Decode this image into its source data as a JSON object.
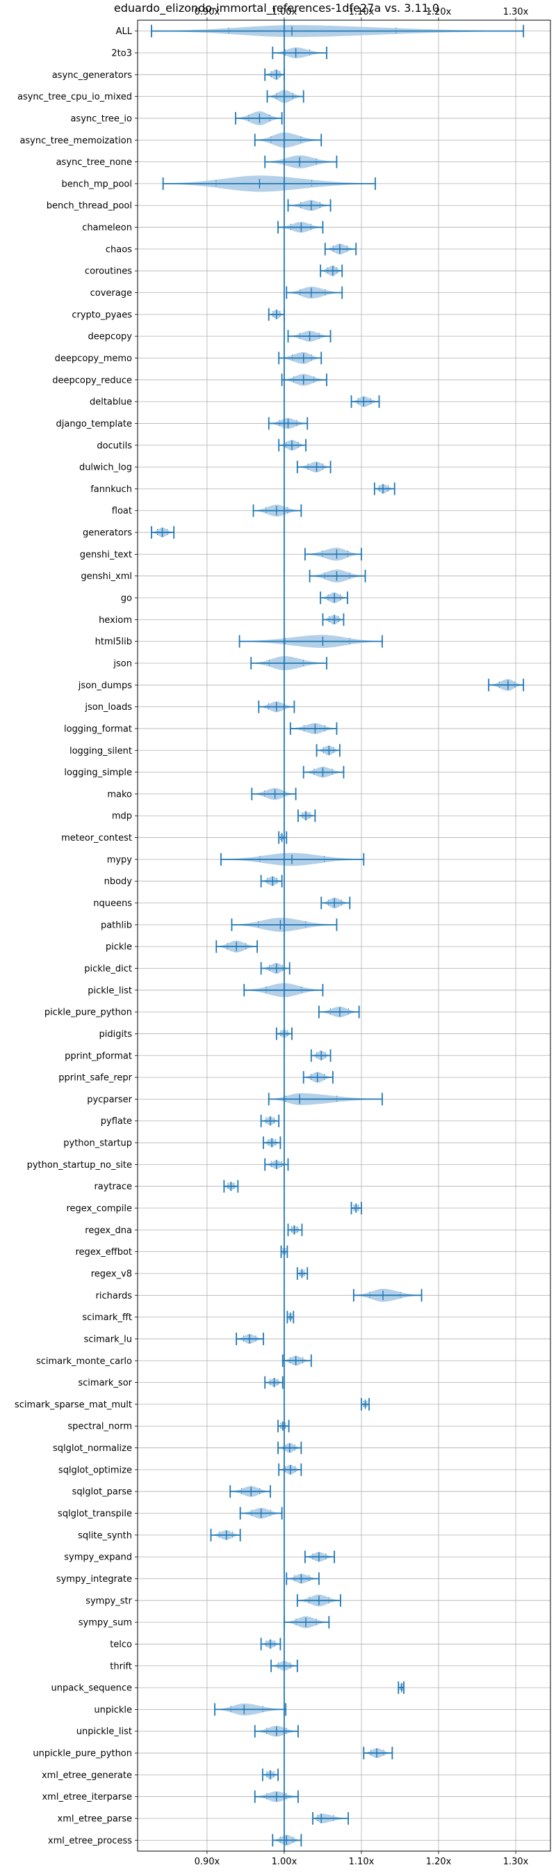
{
  "chart_data": {
    "type": "violin",
    "title": "eduardo_elizondo-immortal_references-1dfe27a vs. 3.11.0",
    "x_ticks": [
      "0.90x",
      "1.00x",
      "1.10x",
      "1.20x",
      "1.30x"
    ],
    "x_tick_values": [
      0.9,
      1.0,
      1.1,
      1.2,
      1.3
    ],
    "xlim": [
      0.81,
      1.345
    ],
    "reference_line": 1.0,
    "grid": true,
    "color": "#1f77b4",
    "fill_color": "#a6c8e4",
    "orientation": "horizontal",
    "categories": [
      "ALL",
      "2to3",
      "async_generators",
      "async_tree_cpu_io_mixed",
      "async_tree_io",
      "async_tree_memoization",
      "async_tree_none",
      "bench_mp_pool",
      "bench_thread_pool",
      "chameleon",
      "chaos",
      "coroutines",
      "coverage",
      "crypto_pyaes",
      "deepcopy",
      "deepcopy_memo",
      "deepcopy_reduce",
      "deltablue",
      "django_template",
      "docutils",
      "dulwich_log",
      "fannkuch",
      "float",
      "generators",
      "genshi_text",
      "genshi_xml",
      "go",
      "hexiom",
      "html5lib",
      "json",
      "json_dumps",
      "json_loads",
      "logging_format",
      "logging_silent",
      "logging_simple",
      "mako",
      "mdp",
      "meteor_contest",
      "mypy",
      "nbody",
      "nqueens",
      "pathlib",
      "pickle",
      "pickle_dict",
      "pickle_list",
      "pickle_pure_python",
      "pidigits",
      "pprint_pformat",
      "pprint_safe_repr",
      "pycparser",
      "pyflate",
      "python_startup",
      "python_startup_no_site",
      "raytrace",
      "regex_compile",
      "regex_dna",
      "regex_effbot",
      "regex_v8",
      "richards",
      "scimark_fft",
      "scimark_lu",
      "scimark_monte_carlo",
      "scimark_sor",
      "scimark_sparse_mat_mult",
      "spectral_norm",
      "sqlglot_normalize",
      "sqlglot_optimize",
      "sqlglot_parse",
      "sqlglot_transpile",
      "sqlite_synth",
      "sympy_expand",
      "sympy_integrate",
      "sympy_str",
      "sympy_sum",
      "telco",
      "thrift",
      "unpack_sequence",
      "unpickle",
      "unpickle_list",
      "unpickle_pure_python",
      "xml_etree_generate",
      "xml_etree_iterparse",
      "xml_etree_parse",
      "xml_etree_process"
    ],
    "series": [
      {
        "min": 0.828,
        "max": 1.31,
        "median": 1.01,
        "width": 0.55
      },
      {
        "min": 0.985,
        "max": 1.055,
        "median": 1.015,
        "width": 0.5
      },
      {
        "min": 0.975,
        "max": 1.0,
        "median": 0.99,
        "width": 0.5
      },
      {
        "min": 0.978,
        "max": 1.025,
        "median": 1.0,
        "width": 0.6
      },
      {
        "min": 0.937,
        "max": 0.997,
        "median": 0.968,
        "width": 0.65
      },
      {
        "min": 0.962,
        "max": 1.048,
        "median": 1.0,
        "width": 0.7
      },
      {
        "min": 0.975,
        "max": 1.068,
        "median": 1.02,
        "width": 0.6
      },
      {
        "min": 0.843,
        "max": 1.118,
        "median": 0.968,
        "width": 0.75
      },
      {
        "min": 1.005,
        "max": 1.06,
        "median": 1.035,
        "width": 0.5
      },
      {
        "min": 0.992,
        "max": 1.05,
        "median": 1.022,
        "width": 0.5
      },
      {
        "min": 1.053,
        "max": 1.093,
        "median": 1.072,
        "width": 0.5
      },
      {
        "min": 1.047,
        "max": 1.075,
        "median": 1.063,
        "width": 0.5
      },
      {
        "min": 1.003,
        "max": 1.075,
        "median": 1.035,
        "width": 0.55
      },
      {
        "min": 0.98,
        "max": 1.0,
        "median": 0.99,
        "width": 0.45
      },
      {
        "min": 1.005,
        "max": 1.06,
        "median": 1.033,
        "width": 0.5
      },
      {
        "min": 0.993,
        "max": 1.048,
        "median": 1.025,
        "width": 0.55
      },
      {
        "min": 0.997,
        "max": 1.055,
        "median": 1.025,
        "width": 0.55
      },
      {
        "min": 1.087,
        "max": 1.123,
        "median": 1.103,
        "width": 0.5
      },
      {
        "min": 0.98,
        "max": 1.03,
        "median": 1.005,
        "width": 0.5
      },
      {
        "min": 0.993,
        "max": 1.028,
        "median": 1.01,
        "width": 0.5
      },
      {
        "min": 1.017,
        "max": 1.06,
        "median": 1.042,
        "width": 0.5
      },
      {
        "min": 1.117,
        "max": 1.143,
        "median": 1.128,
        "width": 0.45
      },
      {
        "min": 0.96,
        "max": 1.022,
        "median": 0.99,
        "width": 0.55
      },
      {
        "min": 0.828,
        "max": 0.857,
        "median": 0.842,
        "width": 0.45
      },
      {
        "min": 1.027,
        "max": 1.1,
        "median": 1.068,
        "width": 0.6
      },
      {
        "min": 1.033,
        "max": 1.105,
        "median": 1.068,
        "width": 0.6
      },
      {
        "min": 1.047,
        "max": 1.082,
        "median": 1.065,
        "width": 0.5
      },
      {
        "min": 1.05,
        "max": 1.077,
        "median": 1.065,
        "width": 0.45
      },
      {
        "min": 0.942,
        "max": 1.127,
        "median": 1.05,
        "width": 0.6
      },
      {
        "min": 0.957,
        "max": 1.055,
        "median": 1.0,
        "width": 0.65
      },
      {
        "min": 1.265,
        "max": 1.31,
        "median": 1.29,
        "width": 0.55
      },
      {
        "min": 0.967,
        "max": 1.013,
        "median": 0.99,
        "width": 0.5
      },
      {
        "min": 1.008,
        "max": 1.068,
        "median": 1.04,
        "width": 0.5
      },
      {
        "min": 1.042,
        "max": 1.072,
        "median": 1.058,
        "width": 0.45
      },
      {
        "min": 1.025,
        "max": 1.077,
        "median": 1.05,
        "width": 0.5
      },
      {
        "min": 0.958,
        "max": 1.015,
        "median": 0.988,
        "width": 0.55
      },
      {
        "min": 1.018,
        "max": 1.04,
        "median": 1.028,
        "width": 0.4
      },
      {
        "min": 0.993,
        "max": 1.003,
        "median": 0.997,
        "width": 0.3
      },
      {
        "min": 0.918,
        "max": 1.103,
        "median": 1.01,
        "width": 0.6
      },
      {
        "min": 0.97,
        "max": 0.997,
        "median": 0.985,
        "width": 0.45
      },
      {
        "min": 1.048,
        "max": 1.085,
        "median": 1.065,
        "width": 0.5
      },
      {
        "min": 0.932,
        "max": 1.068,
        "median": 0.995,
        "width": 0.65
      },
      {
        "min": 0.912,
        "max": 0.965,
        "median": 0.938,
        "width": 0.55
      },
      {
        "min": 0.97,
        "max": 1.007,
        "median": 0.99,
        "width": 0.5
      },
      {
        "min": 0.948,
        "max": 1.05,
        "median": 1.0,
        "width": 0.65
      },
      {
        "min": 1.045,
        "max": 1.097,
        "median": 1.072,
        "width": 0.5
      },
      {
        "min": 0.99,
        "max": 1.01,
        "median": 1.0,
        "width": 0.4
      },
      {
        "min": 1.035,
        "max": 1.06,
        "median": 1.048,
        "width": 0.45
      },
      {
        "min": 1.025,
        "max": 1.063,
        "median": 1.043,
        "width": 0.5
      },
      {
        "min": 0.98,
        "max": 1.127,
        "median": 1.02,
        "width": 0.55
      },
      {
        "min": 0.97,
        "max": 0.993,
        "median": 0.982,
        "width": 0.4
      },
      {
        "min": 0.973,
        "max": 0.995,
        "median": 0.984,
        "width": 0.4
      },
      {
        "min": 0.975,
        "max": 1.005,
        "median": 0.99,
        "width": 0.4
      },
      {
        "min": 0.922,
        "max": 0.94,
        "median": 0.931,
        "width": 0.4
      },
      {
        "min": 1.087,
        "max": 1.1,
        "median": 1.093,
        "width": 0.4
      },
      {
        "min": 1.005,
        "max": 1.023,
        "median": 1.013,
        "width": 0.4
      },
      {
        "min": 0.996,
        "max": 1.004,
        "median": 1.0,
        "width": 0.3
      },
      {
        "min": 1.017,
        "max": 1.03,
        "median": 1.023,
        "width": 0.35
      },
      {
        "min": 1.09,
        "max": 1.178,
        "median": 1.128,
        "width": 0.6
      },
      {
        "min": 1.004,
        "max": 1.012,
        "median": 1.008,
        "width": 0.3
      },
      {
        "min": 0.938,
        "max": 0.973,
        "median": 0.955,
        "width": 0.45
      },
      {
        "min": 0.998,
        "max": 1.035,
        "median": 1.015,
        "width": 0.45
      },
      {
        "min": 0.975,
        "max": 0.998,
        "median": 0.987,
        "width": 0.4
      },
      {
        "min": 1.1,
        "max": 1.11,
        "median": 1.105,
        "width": 0.3
      },
      {
        "min": 0.992,
        "max": 1.006,
        "median": 0.998,
        "width": 0.35
      },
      {
        "min": 0.992,
        "max": 1.022,
        "median": 1.007,
        "width": 0.45
      },
      {
        "min": 0.993,
        "max": 1.022,
        "median": 1.008,
        "width": 0.45
      },
      {
        "min": 0.93,
        "max": 0.982,
        "median": 0.957,
        "width": 0.5
      },
      {
        "min": 0.943,
        "max": 0.997,
        "median": 0.97,
        "width": 0.5
      },
      {
        "min": 0.905,
        "max": 0.943,
        "median": 0.925,
        "width": 0.45
      },
      {
        "min": 1.027,
        "max": 1.065,
        "median": 1.045,
        "width": 0.45
      },
      {
        "min": 1.003,
        "max": 1.045,
        "median": 1.022,
        "width": 0.45
      },
      {
        "min": 1.017,
        "max": 1.073,
        "median": 1.045,
        "width": 0.55
      },
      {
        "min": 1.0,
        "max": 1.058,
        "median": 1.028,
        "width": 0.55
      },
      {
        "min": 0.97,
        "max": 0.995,
        "median": 0.982,
        "width": 0.4
      },
      {
        "min": 0.983,
        "max": 1.017,
        "median": 1.0,
        "width": 0.45
      },
      {
        "min": 1.148,
        "max": 1.155,
        "median": 1.152,
        "width": 0.25
      },
      {
        "min": 0.91,
        "max": 1.002,
        "median": 0.948,
        "width": 0.55
      },
      {
        "min": 0.962,
        "max": 1.018,
        "median": 0.99,
        "width": 0.5
      },
      {
        "min": 1.103,
        "max": 1.14,
        "median": 1.12,
        "width": 0.45
      },
      {
        "min": 0.972,
        "max": 0.992,
        "median": 0.982,
        "width": 0.4
      },
      {
        "min": 0.962,
        "max": 1.018,
        "median": 0.99,
        "width": 0.5
      },
      {
        "min": 1.037,
        "max": 1.083,
        "median": 1.048,
        "width": 0.45
      },
      {
        "min": 0.985,
        "max": 1.022,
        "median": 1.003,
        "width": 0.5
      }
    ]
  }
}
